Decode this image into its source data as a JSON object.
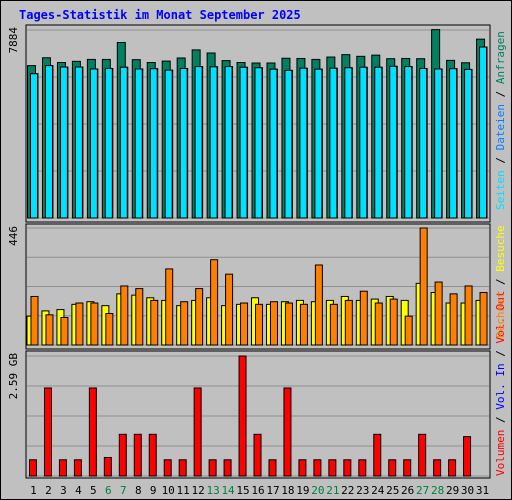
{
  "colors": {
    "background": "#c0c0c0",
    "title": "#0000ff",
    "grid": "#909090",
    "requests": "#008060",
    "files": "#0080ff",
    "pages": "#00e0ff",
    "visits": "#ffff00",
    "sites": "#ff8000",
    "kbytes_in": "#0000ff",
    "kbytes_out": "#ff0000",
    "volume": "#ff0000",
    "weekday_label": "#000000",
    "weekend_label": "#008040"
  },
  "chart_data": {
    "type": "bar",
    "title": "Tages-Statistik im Monat September 2025",
    "categories": [
      "1",
      "2",
      "3",
      "4",
      "5",
      "6",
      "7",
      "8",
      "9",
      "10",
      "11",
      "12",
      "13",
      "14",
      "15",
      "16",
      "17",
      "18",
      "19",
      "20",
      "21",
      "22",
      "23",
      "24",
      "25",
      "26",
      "27",
      "28",
      "29",
      "30",
      "31"
    ],
    "weekend_days": [
      "6",
      "7",
      "13",
      "14",
      "20",
      "21",
      "27",
      "28"
    ],
    "panels": [
      {
        "name": "requests",
        "scale_label": "7884",
        "ymax": 7884,
        "series_labels": [
          {
            "text": "Anfragen",
            "color": "#008060"
          },
          {
            "text": "Dateien",
            "color": "#0080ff"
          },
          {
            "text": "Seiten",
            "color": "#00e0ff"
          }
        ],
        "series": [
          {
            "name": "Anfragen",
            "color": "#008060",
            "values": [
              6390,
              6720,
              6520,
              6570,
              6650,
              6650,
              7360,
              6640,
              6520,
              6580,
              6710,
              7050,
              6920,
              6600,
              6520,
              6500,
              6500,
              6700,
              6690,
              6650,
              6750,
              6850,
              6780,
              6830,
              6680,
              6690,
              6680,
              7900,
              6610,
              6510,
              7500
            ]
          },
          {
            "name": "Dateien",
            "color": "#0080ff",
            "values": [
              6050,
              6390,
              6330,
              6330,
              6250,
              6270,
              6320,
              6250,
              6260,
              6200,
              6270,
              6350,
              6340,
              6350,
              6320,
              6300,
              6240,
              6190,
              6280,
              6240,
              6280,
              6300,
              6320,
              6320,
              6360,
              6350,
              6270,
              6250,
              6260,
              6230,
              7170
            ]
          },
          {
            "name": "Seiten",
            "color": "#00e0ff",
            "values": [
              6050,
              6390,
              6330,
              6330,
              6250,
              6270,
              6320,
              6250,
              6260,
              6200,
              6270,
              6350,
              6340,
              6350,
              6320,
              6300,
              6240,
              6190,
              6280,
              6240,
              6280,
              6300,
              6320,
              6320,
              6360,
              6350,
              6270,
              6250,
              6260,
              6230,
              7170
            ]
          }
        ]
      },
      {
        "name": "visits",
        "scale_label": "446",
        "ymax": 446,
        "series_labels": [
          {
            "text": "Besuche",
            "color": "#ffff00"
          },
          {
            "text": "Rechner",
            "color": "#ff8000"
          }
        ],
        "series": [
          {
            "name": "Besuche",
            "color": "#ffff00",
            "values": [
              110,
              130,
              135,
              155,
              165,
              150,
              195,
              190,
              180,
              170,
              150,
              170,
              180,
              150,
              155,
              180,
              155,
              165,
              170,
              165,
              170,
              185,
              170,
              175,
              185,
              170,
              235,
              200,
              160,
              160,
              170
            ]
          },
          {
            "name": "Rechner",
            "color": "#ff8000",
            "values": [
              185,
              115,
              105,
              160,
              160,
              120,
              225,
              215,
              170,
              290,
              165,
              215,
              325,
              270,
              160,
              155,
              165,
              160,
              155,
              305,
              155,
              170,
              205,
              160,
              175,
              110,
              446,
              240,
              195,
              225,
              200
            ]
          }
        ]
      },
      {
        "name": "volume",
        "scale_label": "2.59 GB",
        "ymax": 2.59,
        "series_labels": [
          {
            "text": "Volumen",
            "color": "#ff0000"
          },
          {
            "text": "Vol. In",
            "color": "#0000ff"
          },
          {
            "text": "Vol. Out",
            "color": "#ff0000"
          }
        ],
        "series": [
          {
            "name": "Volumen",
            "color": "#ff0000",
            "values": [
              0.35,
              1.9,
              0.35,
              0.35,
              1.9,
              0.4,
              0.9,
              0.9,
              0.9,
              0.35,
              0.35,
              1.9,
              0.35,
              0.35,
              2.59,
              0.9,
              0.35,
              1.9,
              0.35,
              0.35,
              0.35,
              0.35,
              0.35,
              0.9,
              0.35,
              0.35,
              0.9,
              0.35,
              0.35,
              0.85,
              0
            ]
          }
        ]
      }
    ],
    "separators": [
      "/",
      "/"
    ]
  }
}
